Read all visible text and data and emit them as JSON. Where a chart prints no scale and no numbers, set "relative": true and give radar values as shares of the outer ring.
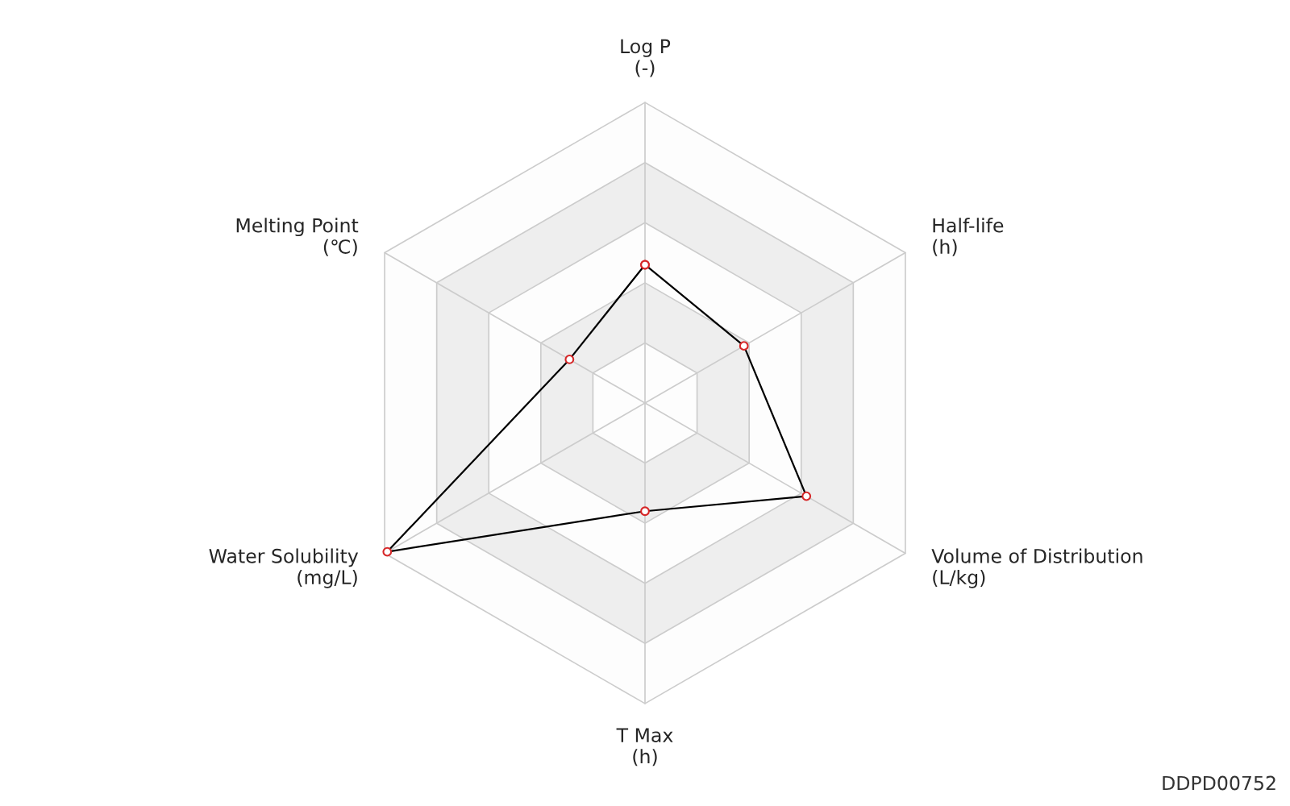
{
  "chart_data": {
    "type": "radar",
    "relative": true,
    "categories": [
      "Log P\n(-)",
      "Half-life\n(h)",
      "Volume of Distribution\n(L/kg)",
      "T Max\n(h)",
      "Water Solubility\n(mg/L)",
      "Melting Point\n(℃)"
    ],
    "series": [
      {
        "color": "#000000",
        "values": [
          0.46,
          0.38,
          0.62,
          0.36,
          0.99,
          0.29
        ]
      }
    ],
    "marker": "circle",
    "line_style": "solid",
    "annotations": [
      "DDPD00752"
    ]
  }
}
